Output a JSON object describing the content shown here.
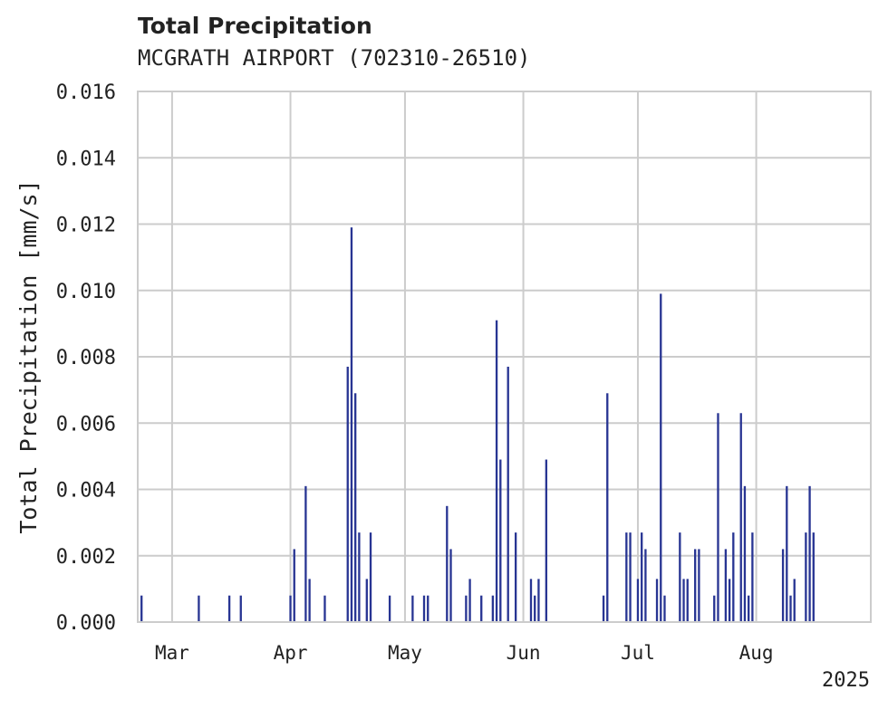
{
  "chart_data": {
    "type": "bar",
    "title": "Total Precipitation",
    "subtitle": "MCGRATH AIRPORT (702310-26510)",
    "ylabel": "Total Precipitation [mm/s]",
    "xlabel": "",
    "ylim": [
      0,
      0.016
    ],
    "yticks": [
      "0.000",
      "0.002",
      "0.004",
      "0.006",
      "0.008",
      "0.010",
      "0.012",
      "0.014",
      "0.016"
    ],
    "xlim": [
      "2025-02-20",
      "2025-08-31"
    ],
    "xticks": [
      {
        "date": "2025-03-01",
        "label": "Mar"
      },
      {
        "date": "2025-04-01",
        "label": "Apr"
      },
      {
        "date": "2025-05-01",
        "label": "May"
      },
      {
        "date": "2025-06-01",
        "label": "Jun"
      },
      {
        "date": "2025-07-01",
        "label": "Jul"
      },
      {
        "date": "2025-08-01",
        "label": "Aug"
      }
    ],
    "year_label": "2025",
    "grid": true,
    "color": "#283593",
    "series": [
      {
        "values": [
          [
            "2025-02-21",
            0.0008
          ],
          [
            "2025-03-08",
            0.0008
          ],
          [
            "2025-03-16",
            0.0008
          ],
          [
            "2025-03-19",
            0.0008
          ],
          [
            "2025-04-01",
            0.0008
          ],
          [
            "2025-04-02",
            0.0022
          ],
          [
            "2025-04-05",
            0.0041
          ],
          [
            "2025-04-06",
            0.0013
          ],
          [
            "2025-04-10",
            0.0008
          ],
          [
            "2025-04-16",
            0.0077
          ],
          [
            "2025-04-17",
            0.0119
          ],
          [
            "2025-04-18",
            0.0069
          ],
          [
            "2025-04-19",
            0.0027
          ],
          [
            "2025-04-21",
            0.0013
          ],
          [
            "2025-04-22",
            0.0027
          ],
          [
            "2025-04-27",
            0.0008
          ],
          [
            "2025-05-03",
            0.0008
          ],
          [
            "2025-05-06",
            0.0008
          ],
          [
            "2025-05-07",
            0.0008
          ],
          [
            "2025-05-12",
            0.0035
          ],
          [
            "2025-05-13",
            0.0022
          ],
          [
            "2025-05-17",
            0.0008
          ],
          [
            "2025-05-18",
            0.0013
          ],
          [
            "2025-05-21",
            0.0008
          ],
          [
            "2025-05-24",
            0.0008
          ],
          [
            "2025-05-25",
            0.0091
          ],
          [
            "2025-05-26",
            0.0049
          ],
          [
            "2025-05-28",
            0.0077
          ],
          [
            "2025-05-30",
            0.0027
          ],
          [
            "2025-06-03",
            0.0013
          ],
          [
            "2025-06-04",
            0.0008
          ],
          [
            "2025-06-05",
            0.0013
          ],
          [
            "2025-06-07",
            0.0049
          ],
          [
            "2025-06-22",
            0.0008
          ],
          [
            "2025-06-23",
            0.0069
          ],
          [
            "2025-06-28",
            0.0027
          ],
          [
            "2025-06-29",
            0.0027
          ],
          [
            "2025-07-01",
            0.0013
          ],
          [
            "2025-07-02",
            0.0027
          ],
          [
            "2025-07-03",
            0.0022
          ],
          [
            "2025-07-06",
            0.0013
          ],
          [
            "2025-07-07",
            0.0099
          ],
          [
            "2025-07-08",
            0.0008
          ],
          [
            "2025-07-12",
            0.0027
          ],
          [
            "2025-07-13",
            0.0013
          ],
          [
            "2025-07-14",
            0.0013
          ],
          [
            "2025-07-16",
            0.0022
          ],
          [
            "2025-07-17",
            0.0022
          ],
          [
            "2025-07-21",
            0.0008
          ],
          [
            "2025-07-22",
            0.0063
          ],
          [
            "2025-07-24",
            0.0022
          ],
          [
            "2025-07-25",
            0.0013
          ],
          [
            "2025-07-26",
            0.0027
          ],
          [
            "2025-07-28",
            0.0063
          ],
          [
            "2025-07-29",
            0.0041
          ],
          [
            "2025-07-30",
            0.0008
          ],
          [
            "2025-07-31",
            0.0027
          ],
          [
            "2025-08-08",
            0.0022
          ],
          [
            "2025-08-09",
            0.0041
          ],
          [
            "2025-08-10",
            0.0008
          ],
          [
            "2025-08-11",
            0.0013
          ],
          [
            "2025-08-14",
            0.0027
          ],
          [
            "2025-08-15",
            0.0041
          ],
          [
            "2025-08-16",
            0.0027
          ]
        ]
      }
    ]
  }
}
